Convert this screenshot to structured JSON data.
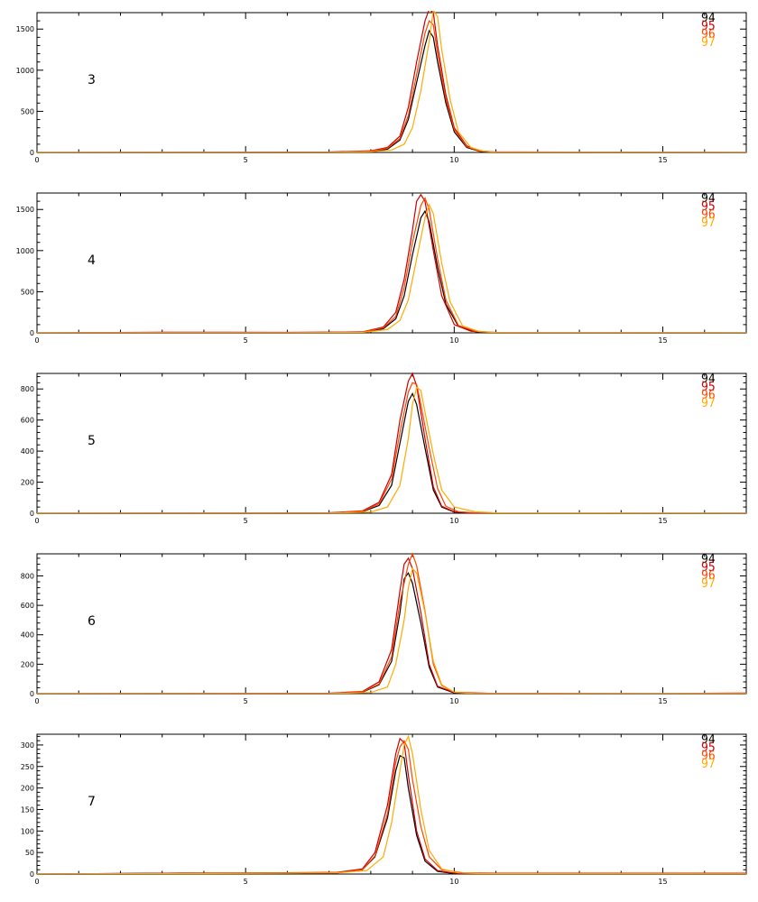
{
  "chart_data": [
    {
      "type": "line",
      "panel_label": "3",
      "xlim": [
        0,
        17
      ],
      "ylim": [
        0,
        1700
      ],
      "xticks": [
        0,
        5,
        10,
        15
      ],
      "yticks": [
        0,
        500,
        1000,
        1500
      ],
      "series": [
        {
          "name": "94",
          "color": "#000000",
          "x": [
            0,
            7.0,
            8.0,
            8.4,
            8.7,
            8.9,
            9.1,
            9.3,
            9.4,
            9.5,
            9.6,
            9.8,
            10.0,
            10.3,
            10.6,
            11.0,
            17
          ],
          "y": [
            0,
            0,
            10,
            40,
            150,
            400,
            850,
            1300,
            1480,
            1400,
            1100,
            600,
            250,
            60,
            15,
            0,
            0
          ]
        },
        {
          "name": "95",
          "color": "#cc0000",
          "x": [
            0,
            7.0,
            8.0,
            8.4,
            8.7,
            8.9,
            9.1,
            9.3,
            9.4,
            9.5,
            9.6,
            9.8,
            10.0,
            10.3,
            10.6,
            11.0,
            11.5,
            17
          ],
          "y": [
            0,
            5,
            20,
            60,
            200,
            550,
            1100,
            1600,
            1740,
            1700,
            1300,
            700,
            300,
            80,
            20,
            5,
            5,
            0
          ]
        },
        {
          "name": "96",
          "color": "#ff4400",
          "x": [
            0,
            7.0,
            8.0,
            8.4,
            8.7,
            8.9,
            9.1,
            9.3,
            9.4,
            9.5,
            9.6,
            9.8,
            10.0,
            10.3,
            10.6,
            11.0,
            17
          ],
          "y": [
            0,
            0,
            15,
            50,
            170,
            450,
            950,
            1450,
            1600,
            1550,
            1200,
            650,
            280,
            70,
            18,
            3,
            0
          ]
        },
        {
          "name": "97",
          "color": "#ffaa00",
          "x": [
            0,
            7.0,
            8.0,
            8.5,
            8.8,
            9.0,
            9.2,
            9.4,
            9.5,
            9.6,
            9.7,
            9.9,
            10.1,
            10.4,
            10.7,
            11.0,
            17
          ],
          "y": [
            0,
            0,
            8,
            30,
            100,
            300,
            750,
            1350,
            1730,
            1650,
            1250,
            650,
            250,
            60,
            15,
            3,
            0
          ]
        }
      ]
    },
    {
      "type": "line",
      "panel_label": "4",
      "xlim": [
        0,
        17
      ],
      "ylim": [
        0,
        1700
      ],
      "xticks": [
        0,
        5,
        10,
        15
      ],
      "yticks": [
        0,
        500,
        1000,
        1500
      ],
      "series": [
        {
          "name": "94",
          "color": "#000000",
          "x": [
            0,
            3.0,
            6.0,
            7.8,
            8.3,
            8.6,
            8.8,
            9.0,
            9.2,
            9.3,
            9.4,
            9.6,
            9.8,
            10.1,
            10.5,
            11.0,
            17
          ],
          "y": [
            0,
            0,
            0,
            8,
            50,
            170,
            450,
            950,
            1400,
            1480,
            1350,
            800,
            350,
            80,
            15,
            0,
            0
          ]
        },
        {
          "name": "95",
          "color": "#cc0000",
          "x": [
            0,
            3.0,
            6.0,
            7.8,
            8.3,
            8.6,
            8.8,
            9.0,
            9.1,
            9.2,
            9.3,
            9.5,
            9.7,
            10.0,
            10.4,
            11.0,
            17
          ],
          "y": [
            0,
            8,
            5,
            12,
            70,
            250,
            650,
            1250,
            1600,
            1680,
            1600,
            1000,
            450,
            100,
            20,
            0,
            0
          ]
        },
        {
          "name": "96",
          "color": "#ff4400",
          "x": [
            0,
            3.0,
            6.0,
            7.8,
            8.3,
            8.6,
            8.8,
            9.0,
            9.2,
            9.3,
            9.4,
            9.6,
            9.8,
            10.1,
            10.5,
            11.0,
            12.0,
            14.0,
            17
          ],
          "y": [
            0,
            6,
            3,
            10,
            60,
            200,
            550,
            1100,
            1550,
            1640,
            1500,
            900,
            400,
            90,
            20,
            5,
            3,
            3,
            0
          ]
        },
        {
          "name": "97",
          "color": "#ffaa00",
          "x": [
            0,
            3.0,
            6.0,
            7.8,
            8.4,
            8.7,
            8.9,
            9.1,
            9.3,
            9.4,
            9.5,
            9.7,
            9.9,
            10.2,
            10.6,
            11.0,
            17
          ],
          "y": [
            0,
            0,
            0,
            5,
            40,
            150,
            400,
            900,
            1400,
            1560,
            1450,
            850,
            380,
            85,
            15,
            3,
            0
          ]
        }
      ]
    },
    {
      "type": "line",
      "panel_label": "5",
      "xlim": [
        0,
        17
      ],
      "ylim": [
        0,
        900
      ],
      "xticks": [
        0,
        5,
        10,
        15
      ],
      "yticks": [
        0,
        200,
        400,
        600,
        800
      ],
      "series": [
        {
          "name": "94",
          "color": "#000000",
          "x": [
            0,
            7.0,
            7.8,
            8.2,
            8.5,
            8.7,
            8.9,
            9.0,
            9.1,
            9.3,
            9.5,
            9.7,
            10.0,
            10.5,
            17
          ],
          "y": [
            0,
            0,
            10,
            50,
            180,
            450,
            720,
            770,
            700,
            420,
            150,
            40,
            8,
            0,
            0
          ]
        },
        {
          "name": "95",
          "color": "#cc0000",
          "x": [
            0,
            7.0,
            7.8,
            8.2,
            8.5,
            8.7,
            8.9,
            9.0,
            9.1,
            9.3,
            9.5,
            9.7,
            10.0,
            10.5,
            17
          ],
          "y": [
            0,
            3,
            15,
            70,
            250,
            600,
            850,
            900,
            820,
            480,
            170,
            45,
            10,
            0,
            0
          ]
        },
        {
          "name": "96",
          "color": "#ff4400",
          "x": [
            0,
            7.0,
            7.8,
            8.2,
            8.5,
            8.7,
            8.9,
            9.0,
            9.1,
            9.2,
            9.4,
            9.6,
            9.8,
            10.1,
            10.6,
            17
          ],
          "y": [
            0,
            2,
            12,
            60,
            220,
            520,
            780,
            840,
            830,
            700,
            420,
            160,
            45,
            10,
            2,
            0
          ]
        },
        {
          "name": "97",
          "color": "#ffaa00",
          "x": [
            0,
            7.0,
            8.0,
            8.4,
            8.7,
            8.9,
            9.0,
            9.1,
            9.2,
            9.3,
            9.5,
            9.7,
            10.0,
            10.5,
            11.0,
            17
          ],
          "y": [
            0,
            0,
            8,
            40,
            180,
            480,
            700,
            810,
            790,
            650,
            380,
            150,
            40,
            10,
            3,
            0
          ]
        }
      ]
    },
    {
      "type": "line",
      "panel_label": "6",
      "xlim": [
        0,
        17
      ],
      "ylim": [
        0,
        950
      ],
      "xticks": [
        0,
        5,
        10,
        15
      ],
      "yticks": [
        0,
        200,
        400,
        600,
        800
      ],
      "series": [
        {
          "name": "94",
          "color": "#000000",
          "x": [
            0,
            7.0,
            7.8,
            8.2,
            8.5,
            8.7,
            8.8,
            8.9,
            9.0,
            9.2,
            9.4,
            9.6,
            10.0,
            10.5,
            17
          ],
          "y": [
            0,
            0,
            10,
            60,
            220,
            550,
            780,
            820,
            750,
            480,
            180,
            45,
            5,
            0,
            0
          ]
        },
        {
          "name": "95",
          "color": "#cc0000",
          "x": [
            0,
            7.0,
            7.8,
            8.2,
            8.5,
            8.7,
            8.8,
            8.9,
            9.0,
            9.2,
            9.4,
            9.6,
            10.0,
            10.5,
            17
          ],
          "y": [
            0,
            3,
            15,
            80,
            300,
            700,
            880,
            920,
            850,
            550,
            200,
            50,
            8,
            0,
            0
          ]
        },
        {
          "name": "96",
          "color": "#ff4400",
          "x": [
            0,
            7.0,
            7.8,
            8.2,
            8.5,
            8.7,
            8.9,
            9.0,
            9.1,
            9.3,
            9.5,
            9.7,
            10.0,
            10.8,
            15.0,
            16.5,
            17
          ],
          "y": [
            0,
            2,
            12,
            65,
            250,
            620,
            880,
            950,
            870,
            560,
            200,
            55,
            10,
            3,
            0,
            4,
            5
          ]
        },
        {
          "name": "97",
          "color": "#ffaa00",
          "x": [
            0,
            7.0,
            8.0,
            8.4,
            8.6,
            8.8,
            8.9,
            9.0,
            9.1,
            9.3,
            9.5,
            9.7,
            10.0,
            10.5,
            17
          ],
          "y": [
            0,
            0,
            8,
            45,
            200,
            500,
            720,
            850,
            820,
            550,
            220,
            60,
            10,
            0,
            0
          ]
        }
      ]
    },
    {
      "type": "line",
      "panel_label": "7",
      "xlim": [
        0,
        17
      ],
      "ylim": [
        0,
        325
      ],
      "xticks": [
        0,
        5,
        10,
        15
      ],
      "yticks": [
        0,
        50,
        100,
        150,
        200,
        250,
        300
      ],
      "series": [
        {
          "name": "94",
          "color": "#000000",
          "x": [
            0,
            3.5,
            6.0,
            7.2,
            7.8,
            8.1,
            8.4,
            8.6,
            8.7,
            8.8,
            8.9,
            9.1,
            9.3,
            9.6,
            10.0,
            10.5,
            17
          ],
          "y": [
            0,
            2,
            2,
            3,
            10,
            40,
            130,
            240,
            275,
            270,
            200,
            90,
            30,
            6,
            1,
            0,
            0
          ]
        },
        {
          "name": "95",
          "color": "#cc0000",
          "x": [
            0,
            3.5,
            6.0,
            7.2,
            7.8,
            8.1,
            8.4,
            8.6,
            8.7,
            8.8,
            8.9,
            9.1,
            9.3,
            9.6,
            10.0,
            10.5,
            17
          ],
          "y": [
            0,
            2,
            3,
            4,
            12,
            50,
            160,
            280,
            315,
            305,
            230,
            100,
            35,
            8,
            2,
            0,
            0
          ]
        },
        {
          "name": "96",
          "color": "#ff4400",
          "x": [
            0,
            3.5,
            6.0,
            7.2,
            7.8,
            8.1,
            8.4,
            8.6,
            8.7,
            8.8,
            8.9,
            9.0,
            9.2,
            9.4,
            9.7,
            10.2,
            11.0,
            17
          ],
          "y": [
            0,
            1,
            2,
            3,
            10,
            42,
            140,
            260,
            295,
            310,
            290,
            220,
            110,
            40,
            10,
            3,
            2,
            2
          ]
        },
        {
          "name": "97",
          "color": "#ffaa00",
          "x": [
            0,
            3.5,
            6.0,
            7.2,
            7.9,
            8.3,
            8.5,
            8.7,
            8.8,
            8.9,
            9.0,
            9.2,
            9.4,
            9.7,
            10.1,
            10.6,
            17
          ],
          "y": [
            0,
            1,
            2,
            3,
            8,
            40,
            120,
            240,
            300,
            320,
            280,
            150,
            55,
            12,
            3,
            1,
            0
          ]
        }
      ]
    }
  ]
}
